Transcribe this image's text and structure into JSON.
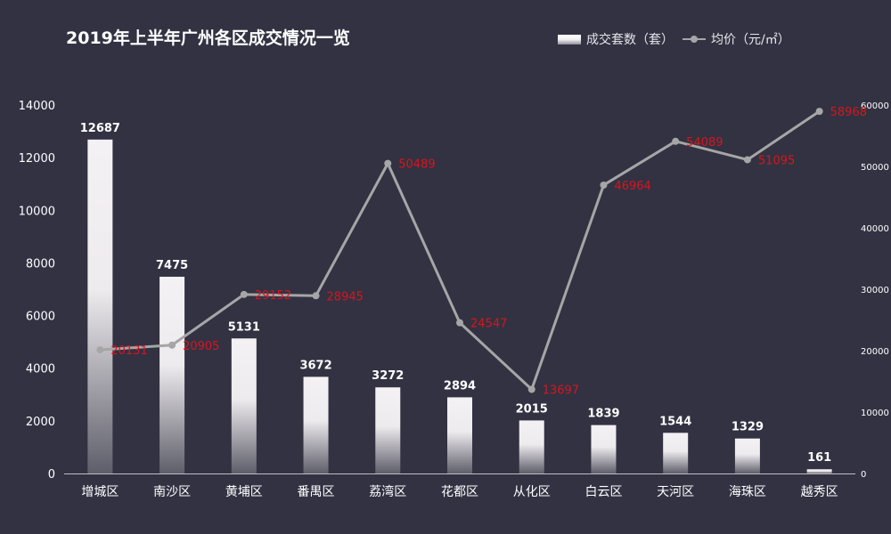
{
  "colors": {
    "background": "#323243",
    "bar_top": "#f2eff2",
    "bar_bottom": "#64646e",
    "line": "#a6a6a6",
    "price_label": "#d9151b",
    "text": "#ffffff"
  },
  "chart_data": {
    "type": "bar",
    "title": "2019年上半年广州各区成交情况一览",
    "categories": [
      "增城区",
      "南沙区",
      "黄埔区",
      "番禺区",
      "荔湾区",
      "花都区",
      "从化区",
      "白云区",
      "天河区",
      "海珠区",
      "越秀区"
    ],
    "series": [
      {
        "name": "成交套数（套）",
        "type": "bar",
        "axis": "left",
        "values": [
          12687,
          7475,
          5131,
          3672,
          3272,
          2894,
          2015,
          1839,
          1544,
          1329,
          161
        ],
        "labels": [
          "12687",
          "7475",
          "5131",
          "3672",
          "3272",
          "2894",
          "2015",
          "1839",
          "1544",
          "1329",
          "161"
        ]
      },
      {
        "name": "均价（元/㎡）",
        "type": "line",
        "axis": "right",
        "values": [
          20131,
          20905,
          29152,
          28945,
          50489,
          24547,
          13697,
          46964,
          54089,
          51095,
          58968
        ],
        "labels": [
          "20131",
          "20905",
          "29152",
          "28945",
          "50489",
          "24547",
          "13697",
          "46964",
          "54089",
          "51095",
          "58968"
        ]
      }
    ],
    "y_left": {
      "lim": [
        0,
        14000
      ],
      "ticks": [
        0,
        2000,
        4000,
        6000,
        8000,
        10000,
        12000,
        14000
      ],
      "tick_labels": [
        "0",
        "2000",
        "4000",
        "6000",
        "8000",
        "10000",
        "12000",
        "14000"
      ]
    },
    "y_right": {
      "lim": [
        0,
        60000
      ],
      "ticks": [
        0,
        10000,
        20000,
        30000,
        40000,
        50000,
        60000
      ],
      "tick_labels": [
        "0",
        "10000",
        "20000",
        "30000",
        "40000",
        "50000",
        "60000"
      ]
    },
    "legend": {
      "position": "top-right"
    },
    "grid": false
  }
}
